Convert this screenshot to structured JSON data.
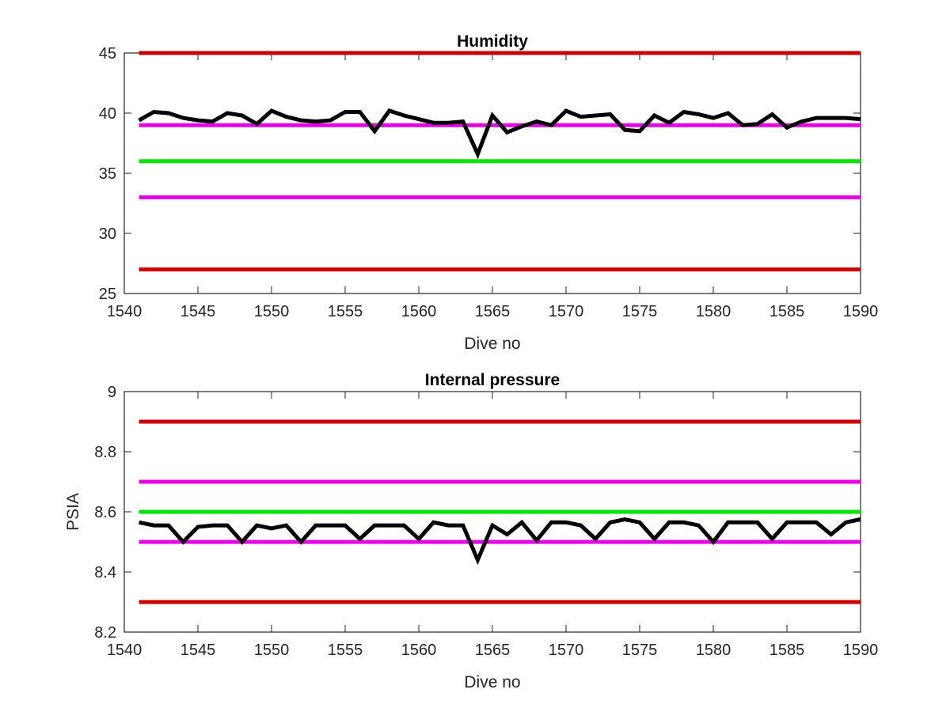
{
  "chart_data": [
    {
      "type": "line",
      "title": "Humidity",
      "xlabel": "Dive no",
      "ylabel": "",
      "xlim": [
        1540,
        1590
      ],
      "ylim": [
        25,
        45
      ],
      "xticks": [
        "1540",
        "1545",
        "1550",
        "1555",
        "1560",
        "1565",
        "1570",
        "1575",
        "1580",
        "1585",
        "1590"
      ],
      "yticks": [
        "25",
        "30",
        "35",
        "40",
        "45"
      ],
      "grid": false,
      "thresholds": [
        {
          "value": 45,
          "color": "#cc0000"
        },
        {
          "value": 39,
          "color": "#e600e6"
        },
        {
          "value": 36,
          "color": "#00e600"
        },
        {
          "value": 33,
          "color": "#e600e6"
        },
        {
          "value": 27,
          "color": "#cc0000"
        }
      ],
      "series": [
        {
          "color": "#000000",
          "x": [
            1541,
            1542,
            1543,
            1544,
            1545,
            1546,
            1547,
            1548,
            1549,
            1550,
            1551,
            1552,
            1553,
            1554,
            1555,
            1556,
            1557,
            1558,
            1559,
            1560,
            1561,
            1562,
            1563,
            1564,
            1565,
            1566,
            1567,
            1568,
            1569,
            1570,
            1571,
            1572,
            1573,
            1574,
            1575,
            1576,
            1577,
            1578,
            1579,
            1580,
            1581,
            1582,
            1583,
            1584,
            1585,
            1586,
            1587,
            1588,
            1589,
            1590
          ],
          "y": [
            39.4,
            40.1,
            40.0,
            39.6,
            39.4,
            39.3,
            40.0,
            39.8,
            39.1,
            40.2,
            39.7,
            39.4,
            39.3,
            39.4,
            40.1,
            40.1,
            38.5,
            40.2,
            39.8,
            39.5,
            39.2,
            39.2,
            39.3,
            36.6,
            39.8,
            38.4,
            38.9,
            39.3,
            39.0,
            40.2,
            39.7,
            39.8,
            39.9,
            38.6,
            38.5,
            39.8,
            39.2,
            40.1,
            39.9,
            39.6,
            40.0,
            39.0,
            39.1,
            39.9,
            38.8,
            39.3,
            39.6,
            39.6,
            39.6,
            39.5
          ]
        }
      ]
    },
    {
      "type": "line",
      "title": "Internal pressure",
      "xlabel": "Dive no",
      "ylabel": "PSIA",
      "xlim": [
        1540,
        1590
      ],
      "ylim": [
        8.2,
        9.0
      ],
      "xticks": [
        "1540",
        "1545",
        "1550",
        "1555",
        "1560",
        "1565",
        "1570",
        "1575",
        "1580",
        "1585",
        "1590"
      ],
      "yticks": [
        "8.2",
        "8.4",
        "8.6",
        "8.8",
        "9"
      ],
      "grid": false,
      "thresholds": [
        {
          "value": 8.9,
          "color": "#cc0000"
        },
        {
          "value": 8.7,
          "color": "#e600e6"
        },
        {
          "value": 8.6,
          "color": "#00e600"
        },
        {
          "value": 8.5,
          "color": "#e600e6"
        },
        {
          "value": 8.3,
          "color": "#cc0000"
        }
      ],
      "series": [
        {
          "color": "#000000",
          "x": [
            1541,
            1542,
            1543,
            1544,
            1545,
            1546,
            1547,
            1548,
            1549,
            1550,
            1551,
            1552,
            1553,
            1554,
            1555,
            1556,
            1557,
            1558,
            1559,
            1560,
            1561,
            1562,
            1563,
            1564,
            1565,
            1566,
            1567,
            1568,
            1569,
            1570,
            1571,
            1572,
            1573,
            1574,
            1575,
            1576,
            1577,
            1578,
            1579,
            1580,
            1581,
            1582,
            1583,
            1584,
            1585,
            1586,
            1587,
            1588,
            1589,
            1590
          ],
          "y": [
            8.565,
            8.555,
            8.555,
            8.5,
            8.55,
            8.555,
            8.555,
            8.5,
            8.555,
            8.545,
            8.555,
            8.5,
            8.555,
            8.555,
            8.555,
            8.51,
            8.555,
            8.555,
            8.555,
            8.51,
            8.565,
            8.555,
            8.555,
            8.44,
            8.555,
            8.525,
            8.565,
            8.505,
            8.565,
            8.565,
            8.555,
            8.51,
            8.565,
            8.575,
            8.565,
            8.51,
            8.565,
            8.565,
            8.555,
            8.5,
            8.565,
            8.565,
            8.565,
            8.51,
            8.565,
            8.565,
            8.565,
            8.525,
            8.565,
            8.575
          ]
        }
      ]
    }
  ]
}
